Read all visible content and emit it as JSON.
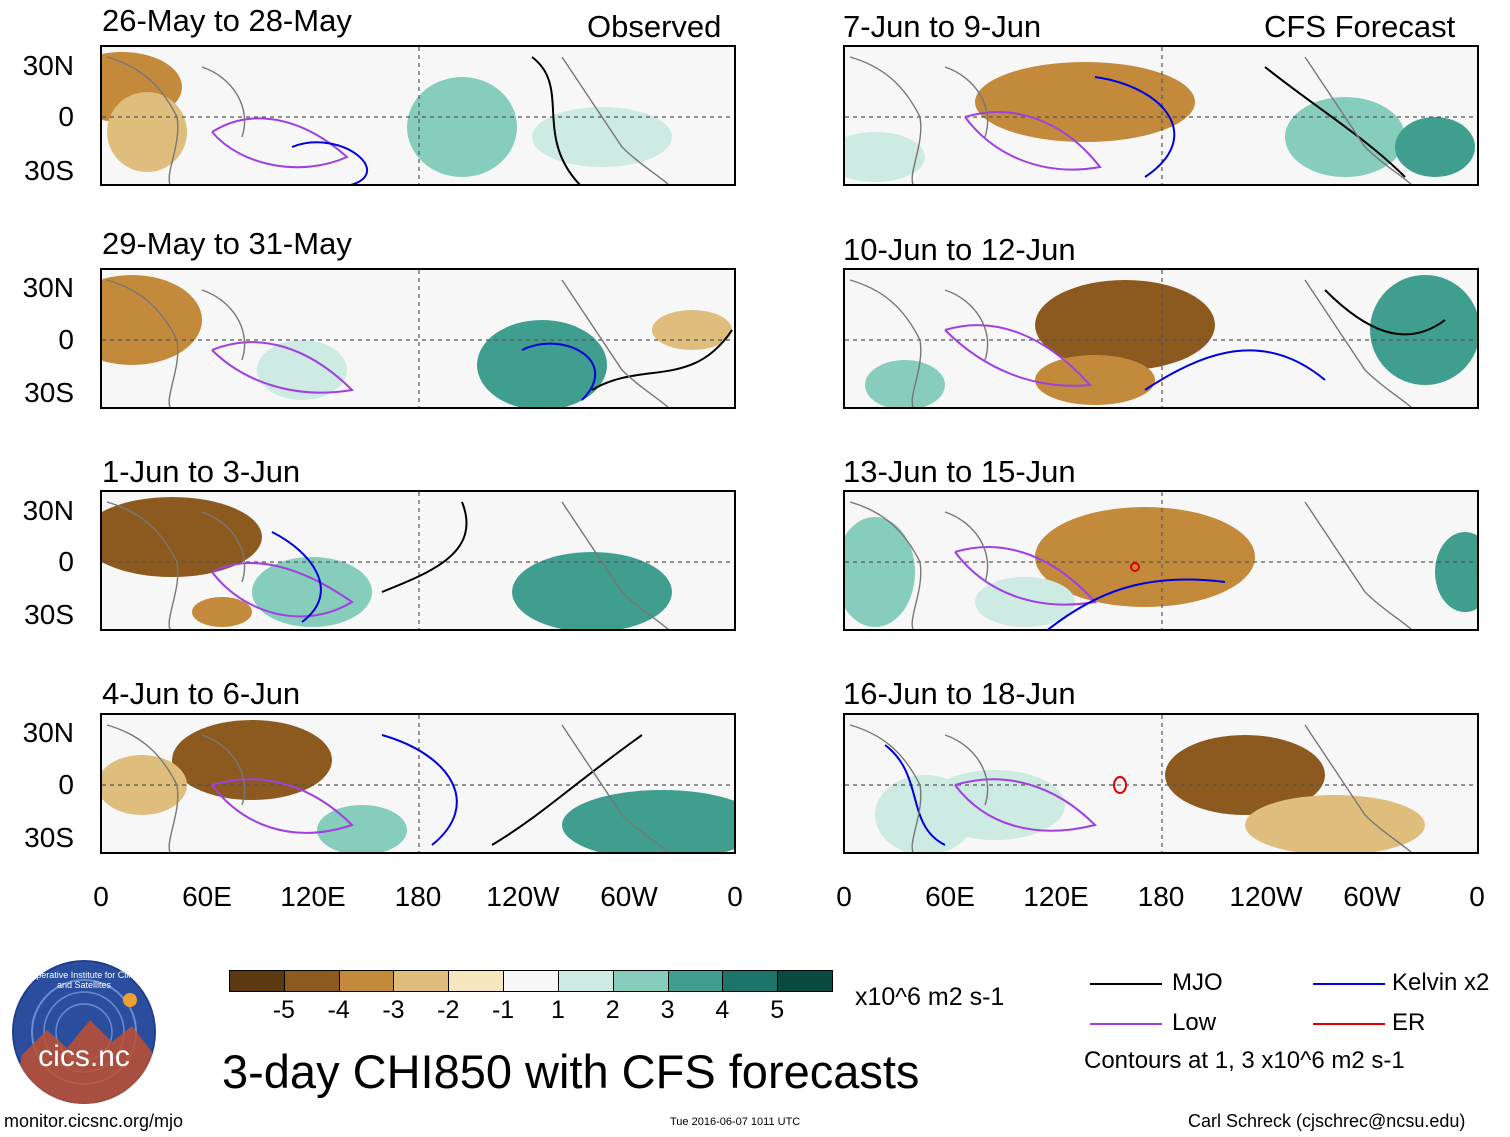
{
  "header": {
    "observed_label": "Observed",
    "forecast_label": "CFS Forecast"
  },
  "observed_panels": [
    {
      "title": "26-May to 28-May"
    },
    {
      "title": "29-May to 31-May"
    },
    {
      "title": "1-Jun to 3-Jun"
    },
    {
      "title": "4-Jun to 6-Jun"
    }
  ],
  "forecast_panels": [
    {
      "title": "7-Jun to 9-Jun"
    },
    {
      "title": "10-Jun to 12-Jun"
    },
    {
      "title": "13-Jun to 15-Jun"
    },
    {
      "title": "16-Jun to 18-Jun"
    }
  ],
  "chart_data": {
    "type": "heatmap",
    "title": "3-day CHI850 with CFS forecasts",
    "variable": "CHI850 anomaly",
    "units": "x10^6 m2 s-1",
    "y_ticks": [
      "30N",
      "0",
      "30S"
    ],
    "x_ticks": [
      "0",
      "60E",
      "120E",
      "180",
      "120W",
      "60W",
      "0"
    ],
    "colorbar": {
      "levels": [
        -5,
        -4,
        -3,
        -2,
        -1,
        1,
        2,
        3,
        4,
        5
      ],
      "labels": [
        "-5",
        "-4",
        "-3",
        "-2",
        "-1",
        "1",
        "2",
        "3",
        "4",
        "5"
      ],
      "colors": [
        "#5b3a12",
        "#8c5a1e",
        "#c38a3b",
        "#dfbe7d",
        "#f6e6bf",
        "#f7f7f7",
        "#cdeae3",
        "#86cdbc",
        "#3f9e8e",
        "#1f7469",
        "#0a4a41"
      ]
    },
    "contours": {
      "legend": [
        {
          "label": "MJO",
          "color": "#000000"
        },
        {
          "label": "Kelvin x2",
          "color": "#0000dd"
        },
        {
          "label": "Low",
          "color": "#a040e0"
        },
        {
          "label": "ER",
          "color": "#dd0000"
        }
      ],
      "note": "Contours at 1, 3 x10^6 m2 s-1"
    }
  },
  "footer": {
    "site": "monitor.cicsnc.org/mjo",
    "timestamp": "Tue 2016-06-07 1011 UTC",
    "author": "Carl Schreck (cjschrec@ncsu.edu)",
    "logo_text": "cics.nc",
    "logo_ring": "Cooperative Institute for Climate and Satellites"
  }
}
